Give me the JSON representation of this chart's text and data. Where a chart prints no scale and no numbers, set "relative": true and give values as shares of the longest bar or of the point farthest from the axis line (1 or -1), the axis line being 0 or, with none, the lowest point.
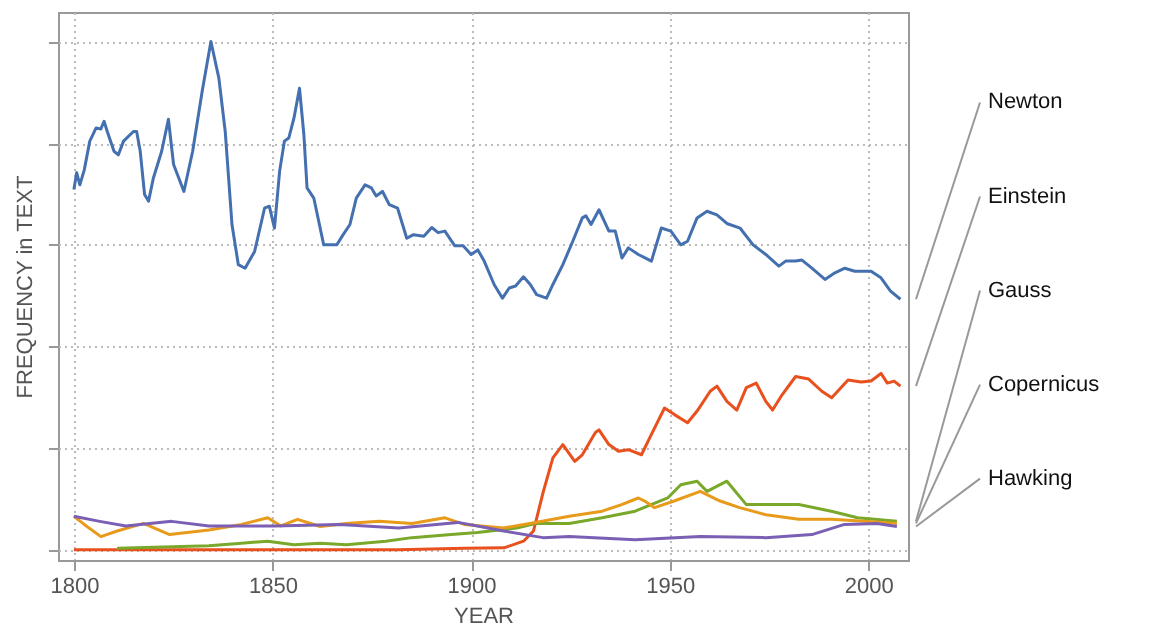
{
  "chart_data": {
    "type": "line",
    "relative": true,
    "xlabel": "YEAR",
    "ylabel": "FREQUENCY in TEXT",
    "xlim": [
      1796,
      2010
    ],
    "xticks": [
      1800,
      1850,
      1900,
      1950,
      2000
    ],
    "grid": true,
    "series": [
      {
        "name": "Newton",
        "color": "#4470b0",
        "x": [
          1800,
          1800.7,
          1801.5,
          1802.6,
          1804,
          1805.6,
          1806.8,
          1807.6,
          1808.4,
          1810.1,
          1811.2,
          1812.5,
          1815,
          1815.8,
          1816.7,
          1817.8,
          1818.8,
          1820,
          1822.1,
          1823.8,
          1825.1,
          1827.7,
          1829.9,
          1832.3,
          1834.5,
          1836.5,
          1838.1,
          1839.8,
          1841.4,
          1843.1,
          1845.5,
          1848,
          1849.2,
          1850.5,
          1851.8,
          1853,
          1854.1,
          1855.4,
          1856.8,
          1857.9,
          1858.7,
          1860.4,
          1862.9,
          1866.2,
          1867.8,
          1869.5,
          1871.1,
          1873.3,
          1874.9,
          1876.1,
          1877.7,
          1879.4,
          1881.5,
          1883.8,
          1885.5,
          1888.1,
          1890.1,
          1891.7,
          1893.4,
          1895.9,
          1898,
          1900,
          1901.7,
          1903.3,
          1905.8,
          1907.9,
          1909.6,
          1911.2,
          1913.2,
          1914.9,
          1916.5,
          1919,
          1920.6,
          1923.1,
          1925.6,
          1928,
          1928.9,
          1930.2,
          1932.2,
          1934.7,
          1936.3,
          1938,
          1939.6,
          1942.1,
          1945.4,
          1947.9,
          1950.3,
          1952.8,
          1954.5,
          1956.9,
          1959.4,
          1961.9,
          1964.4,
          1967.7,
          1971,
          1974.2,
          1977.5,
          1979.2,
          1981.7,
          1983.3,
          1985.8,
          1989.1,
          1991.6,
          1994.1,
          1996.6,
          2000.7,
          2003.2,
          2005.6,
          2008.1
        ],
        "values": [
          0.709,
          0.742,
          0.718,
          0.747,
          0.804,
          0.83,
          0.828,
          0.843,
          0.823,
          0.784,
          0.777,
          0.804,
          0.823,
          0.823,
          0.784,
          0.699,
          0.686,
          0.731,
          0.784,
          0.847,
          0.758,
          0.705,
          0.784,
          0.902,
          1,
          0.928,
          0.823,
          0.64,
          0.561,
          0.554,
          0.587,
          0.672,
          0.676,
          0.633,
          0.745,
          0.804,
          0.81,
          0.849,
          0.908,
          0.817,
          0.712,
          0.692,
          0.6,
          0.6,
          0.62,
          0.64,
          0.692,
          0.718,
          0.712,
          0.696,
          0.705,
          0.679,
          0.672,
          0.613,
          0.62,
          0.617,
          0.634,
          0.624,
          0.627,
          0.598,
          0.598,
          0.581,
          0.59,
          0.568,
          0.522,
          0.495,
          0.515,
          0.519,
          0.537,
          0.522,
          0.502,
          0.495,
          0.522,
          0.561,
          0.607,
          0.653,
          0.657,
          0.64,
          0.669,
          0.627,
          0.627,
          0.574,
          0.594,
          0.581,
          0.568,
          0.633,
          0.627,
          0.6,
          0.607,
          0.653,
          0.666,
          0.659,
          0.642,
          0.633,
          0.6,
          0.581,
          0.558,
          0.568,
          0.568,
          0.57,
          0.554,
          0.532,
          0.545,
          0.554,
          0.548,
          0.548,
          0.535,
          0.509,
          0.493
        ]
      },
      {
        "name": "Einstein",
        "color": "#e8501e",
        "x": [
          1800,
          1881.8,
          1898.3,
          1908.3,
          1913.2,
          1915.7,
          1918.2,
          1920.6,
          1923.1,
          1926.1,
          1928,
          1931.3,
          1932.2,
          1934.7,
          1937.1,
          1939.6,
          1942.9,
          1945.4,
          1948.7,
          1951.2,
          1954.5,
          1956.9,
          1960.2,
          1961.9,
          1964.4,
          1966.9,
          1969.3,
          1971.8,
          1974.2,
          1975.9,
          1978.3,
          1981.7,
          1985,
          1988.3,
          1990.8,
          1994.9,
          1998.2,
          2000.7,
          2003.2,
          2004.8,
          2006.5,
          2008.1
        ],
        "values": [
          0,
          0,
          0.003,
          0.004,
          0.017,
          0.037,
          0.115,
          0.181,
          0.207,
          0.174,
          0.187,
          0.231,
          0.236,
          0.207,
          0.194,
          0.197,
          0.187,
          0.227,
          0.279,
          0.266,
          0.25,
          0.273,
          0.312,
          0.322,
          0.292,
          0.275,
          0.319,
          0.328,
          0.292,
          0.275,
          0.305,
          0.341,
          0.336,
          0.312,
          0.299,
          0.334,
          0.33,
          0.332,
          0.347,
          0.328,
          0.332,
          0.322
        ]
      },
      {
        "name": "Gauss",
        "color": "#7aa82a",
        "x": [
          1810.9,
          1834,
          1842.2,
          1848.8,
          1855.4,
          1862,
          1868.6,
          1878.5,
          1885.1,
          1895,
          1901.6,
          1911.5,
          1916.5,
          1924.7,
          1933,
          1941.3,
          1949.5,
          1952.8,
          1956.9,
          1959.4,
          1964.4,
          1969.3,
          1974.2,
          1982.5,
          1990.7,
          1997.3,
          2007.2
        ],
        "values": [
          0.003,
          0.008,
          0.013,
          0.017,
          0.01,
          0.013,
          0.01,
          0.017,
          0.024,
          0.03,
          0.034,
          0.043,
          0.052,
          0.052,
          0.063,
          0.076,
          0.102,
          0.128,
          0.135,
          0.115,
          0.135,
          0.089,
          0.089,
          0.089,
          0.076,
          0.063,
          0.056
        ]
      },
      {
        "name": "Copernicus",
        "color": "#e89a1a",
        "x": [
          1800,
          1802.6,
          1806.8,
          1810.9,
          1817.5,
          1824.1,
          1834,
          1842.2,
          1848.8,
          1852.1,
          1856.3,
          1862,
          1868.6,
          1876.9,
          1885.1,
          1893.4,
          1898.3,
          1908.2,
          1914.8,
          1924.7,
          1933,
          1937.9,
          1942.1,
          1943.7,
          1946.2,
          1951.1,
          1957.7,
          1962.7,
          1967.6,
          1974.2,
          1982.5,
          1990.7,
          1999,
          2007.2
        ],
        "values": [
          0.066,
          0.05,
          0.026,
          0.037,
          0.052,
          0.03,
          0.039,
          0.05,
          0.063,
          0.047,
          0.06,
          0.046,
          0.052,
          0.056,
          0.052,
          0.063,
          0.05,
          0.043,
          0.052,
          0.066,
          0.076,
          0.089,
          0.102,
          0.096,
          0.083,
          0.096,
          0.115,
          0.096,
          0.083,
          0.069,
          0.06,
          0.06,
          0.056,
          0.052
        ]
      },
      {
        "name": "Hawking",
        "color": "#7b5fb5",
        "x": [
          1800,
          1806.5,
          1813.1,
          1824.6,
          1834,
          1850.5,
          1867,
          1881.8,
          1896.7,
          1908.2,
          1918.1,
          1924.7,
          1941.3,
          1957.7,
          1974.2,
          1985.8,
          1994,
          2002.2,
          2007.2
        ],
        "values": [
          0.066,
          0.056,
          0.047,
          0.056,
          0.047,
          0.047,
          0.05,
          0.043,
          0.054,
          0.037,
          0.024,
          0.026,
          0.02,
          0.026,
          0.024,
          0.03,
          0.05,
          0.052,
          0.046
        ]
      }
    ]
  }
}
